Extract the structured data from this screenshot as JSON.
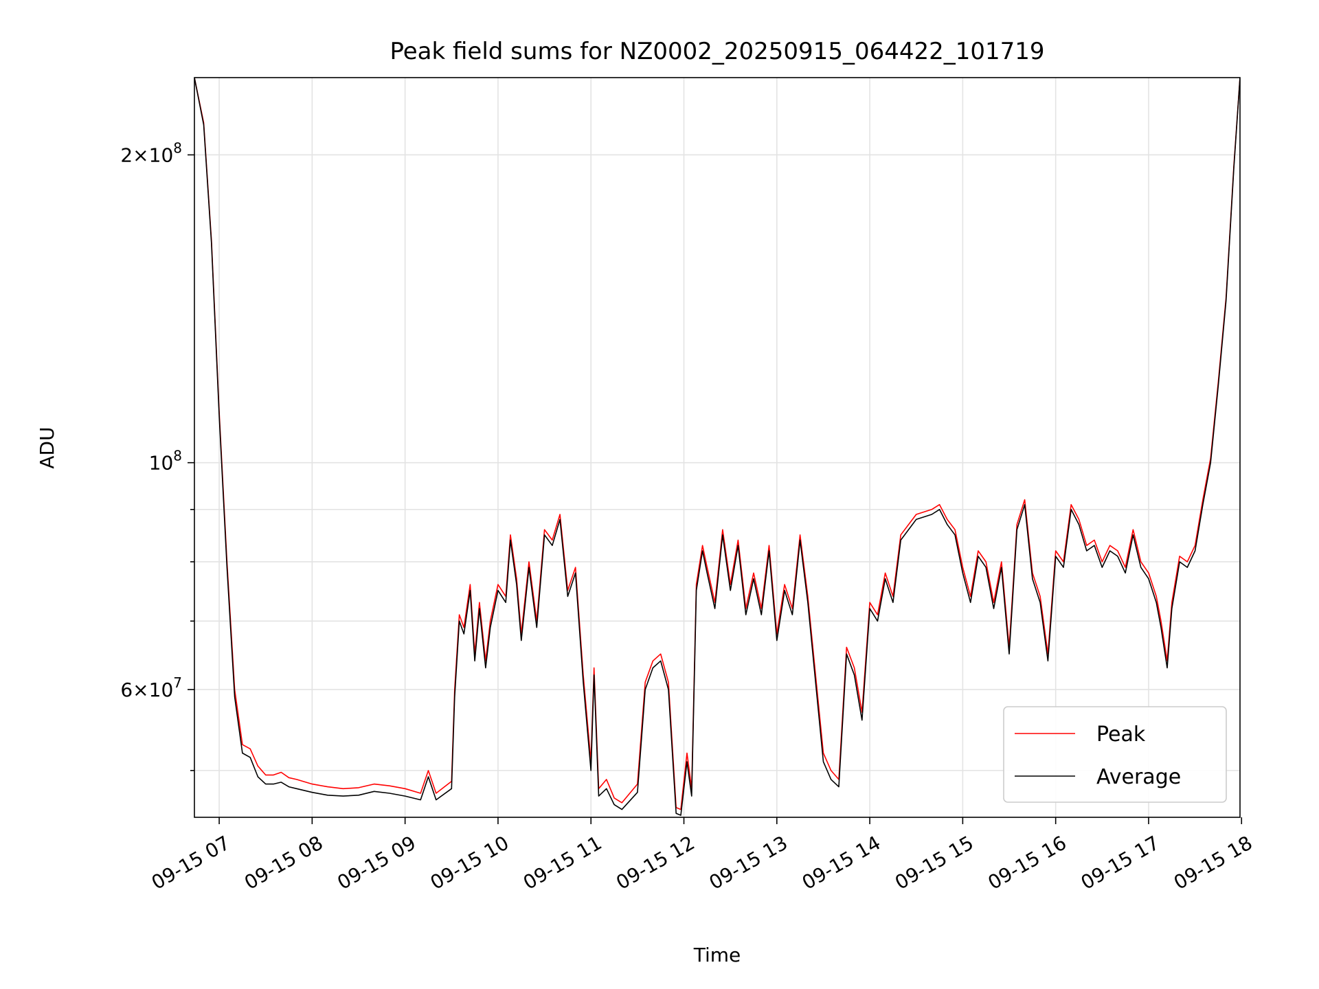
{
  "chart_data": {
    "type": "line",
    "title": "Peak field sums for NZ0002_20250915_064422_101719",
    "xlabel": "Time",
    "ylabel": "ADU",
    "yscale": "log",
    "grid": true,
    "legend_position": "lower-right",
    "xlim": [
      "2025-09-15 06:44",
      "2025-09-15 17:59"
    ],
    "ylim": [
      45000000,
      238000000
    ],
    "x_ticks": [
      {
        "x": "2025-09-15 07:00",
        "label": "09-15 07"
      },
      {
        "x": "2025-09-15 08:00",
        "label": "09-15 08"
      },
      {
        "x": "2025-09-15 09:00",
        "label": "09-15 09"
      },
      {
        "x": "2025-09-15 10:00",
        "label": "09-15 10"
      },
      {
        "x": "2025-09-15 11:00",
        "label": "09-15 11"
      },
      {
        "x": "2025-09-15 12:00",
        "label": "09-15 12"
      },
      {
        "x": "2025-09-15 13:00",
        "label": "09-15 13"
      },
      {
        "x": "2025-09-15 14:00",
        "label": "09-15 14"
      },
      {
        "x": "2025-09-15 15:00",
        "label": "09-15 15"
      },
      {
        "x": "2025-09-15 16:00",
        "label": "09-15 16"
      },
      {
        "x": "2025-09-15 17:00",
        "label": "09-15 17"
      },
      {
        "x": "2025-09-15 18:00",
        "label": "09-15 18"
      }
    ],
    "y_major_ticks": [
      {
        "value": 200000000,
        "mantissa": "2",
        "exponent": "8"
      },
      {
        "value": 100000000,
        "mantissa": "",
        "exponent": "8"
      },
      {
        "value": 60000000,
        "mantissa": "6",
        "exponent": "7"
      }
    ],
    "y_minor_grid": [
      50000000,
      70000000,
      80000000,
      90000000
    ],
    "series": [
      {
        "name": "Peak",
        "color": "#ff0000",
        "x": [
          "2025-09-15 06:44",
          "2025-09-15 06:50",
          "2025-09-15 06:55",
          "2025-09-15 07:00",
          "2025-09-15 07:05",
          "2025-09-15 07:10",
          "2025-09-15 07:15",
          "2025-09-15 07:20",
          "2025-09-15 07:25",
          "2025-09-15 07:30",
          "2025-09-15 07:35",
          "2025-09-15 07:40",
          "2025-09-15 07:45",
          "2025-09-15 07:50",
          "2025-09-15 08:00",
          "2025-09-15 08:10",
          "2025-09-15 08:20",
          "2025-09-15 08:30",
          "2025-09-15 08:40",
          "2025-09-15 08:50",
          "2025-09-15 09:00",
          "2025-09-15 09:10",
          "2025-09-15 09:15",
          "2025-09-15 09:20",
          "2025-09-15 09:30",
          "2025-09-15 09:32",
          "2025-09-15 09:35",
          "2025-09-15 09:38",
          "2025-09-15 09:42",
          "2025-09-15 09:45",
          "2025-09-15 09:48",
          "2025-09-15 09:52",
          "2025-09-15 09:55",
          "2025-09-15 10:00",
          "2025-09-15 10:05",
          "2025-09-15 10:08",
          "2025-09-15 10:12",
          "2025-09-15 10:15",
          "2025-09-15 10:20",
          "2025-09-15 10:25",
          "2025-09-15 10:30",
          "2025-09-15 10:35",
          "2025-09-15 10:40",
          "2025-09-15 10:45",
          "2025-09-15 10:50",
          "2025-09-15 10:55",
          "2025-09-15 11:00",
          "2025-09-15 11:02",
          "2025-09-15 11:05",
          "2025-09-15 11:10",
          "2025-09-15 11:15",
          "2025-09-15 11:20",
          "2025-09-15 11:30",
          "2025-09-15 11:35",
          "2025-09-15 11:40",
          "2025-09-15 11:45",
          "2025-09-15 11:50",
          "2025-09-15 11:55",
          "2025-09-15 11:58",
          "2025-09-15 12:02",
          "2025-09-15 12:05",
          "2025-09-15 12:08",
          "2025-09-15 12:12",
          "2025-09-15 12:15",
          "2025-09-15 12:20",
          "2025-09-15 12:25",
          "2025-09-15 12:30",
          "2025-09-15 12:35",
          "2025-09-15 12:40",
          "2025-09-15 12:45",
          "2025-09-15 12:50",
          "2025-09-15 12:55",
          "2025-09-15 13:00",
          "2025-09-15 13:05",
          "2025-09-15 13:10",
          "2025-09-15 13:15",
          "2025-09-15 13:20",
          "2025-09-15 13:25",
          "2025-09-15 13:30",
          "2025-09-15 13:35",
          "2025-09-15 13:40",
          "2025-09-15 13:45",
          "2025-09-15 13:50",
          "2025-09-15 13:55",
          "2025-09-15 14:00",
          "2025-09-15 14:05",
          "2025-09-15 14:10",
          "2025-09-15 14:15",
          "2025-09-15 14:20",
          "2025-09-15 14:30",
          "2025-09-15 14:40",
          "2025-09-15 14:45",
          "2025-09-15 14:50",
          "2025-09-15 14:55",
          "2025-09-15 15:00",
          "2025-09-15 15:05",
          "2025-09-15 15:10",
          "2025-09-15 15:15",
          "2025-09-15 15:20",
          "2025-09-15 15:25",
          "2025-09-15 15:30",
          "2025-09-15 15:35",
          "2025-09-15 15:40",
          "2025-09-15 15:45",
          "2025-09-15 15:50",
          "2025-09-15 15:55",
          "2025-09-15 16:00",
          "2025-09-15 16:05",
          "2025-09-15 16:10",
          "2025-09-15 16:15",
          "2025-09-15 16:20",
          "2025-09-15 16:25",
          "2025-09-15 16:30",
          "2025-09-15 16:35",
          "2025-09-15 16:40",
          "2025-09-15 16:45",
          "2025-09-15 16:50",
          "2025-09-15 16:55",
          "2025-09-15 17:00",
          "2025-09-15 17:05",
          "2025-09-15 17:08",
          "2025-09-15 17:12",
          "2025-09-15 17:15",
          "2025-09-15 17:20",
          "2025-09-15 17:25",
          "2025-09-15 17:30",
          "2025-09-15 17:35",
          "2025-09-15 17:40",
          "2025-09-15 17:45",
          "2025-09-15 17:50",
          "2025-09-15 17:55",
          "2025-09-15 17:59"
        ],
        "y": [
          238000000,
          215000000,
          165000000,
          112000000,
          80000000,
          60000000,
          53000000,
          52500000,
          50500000,
          49500000,
          49500000,
          49800000,
          49200000,
          49000000,
          48500000,
          48200000,
          48000000,
          48100000,
          48500000,
          48300000,
          48000000,
          47500000,
          50000000,
          47500000,
          48800000,
          60000000,
          71000000,
          69000000,
          76000000,
          65000000,
          73000000,
          64000000,
          70000000,
          76000000,
          74000000,
          85000000,
          77000000,
          68000000,
          80000000,
          70000000,
          86000000,
          84000000,
          89000000,
          75000000,
          79000000,
          62000000,
          51000000,
          63000000,
          48000000,
          49000000,
          47000000,
          46500000,
          48500000,
          61000000,
          64000000,
          65000000,
          61000000,
          46000000,
          45800000,
          52000000,
          48000000,
          76000000,
          83000000,
          79000000,
          73000000,
          86000000,
          76000000,
          84000000,
          72000000,
          78000000,
          72000000,
          83000000,
          68000000,
          76000000,
          72000000,
          85000000,
          74000000,
          62000000,
          52000000,
          50000000,
          49000000,
          66000000,
          63000000,
          57000000,
          73000000,
          71000000,
          78000000,
          74000000,
          85000000,
          89000000,
          90000000,
          91000000,
          88000000,
          86000000,
          79000000,
          74000000,
          82000000,
          80000000,
          73000000,
          80000000,
          66000000,
          87000000,
          92000000,
          78000000,
          74000000,
          65000000,
          82000000,
          80000000,
          91000000,
          88000000,
          83000000,
          84000000,
          80000000,
          83000000,
          82000000,
          79000000,
          86000000,
          80000000,
          78000000,
          74000000,
          70000000,
          64000000,
          73000000,
          81000000,
          80000000,
          83000000,
          92000000,
          101000000,
          120000000,
          145000000,
          195000000,
          238000000
        ]
      },
      {
        "name": "Average",
        "color": "#000000",
        "x": [
          "2025-09-15 06:44",
          "2025-09-15 06:50",
          "2025-09-15 06:55",
          "2025-09-15 07:00",
          "2025-09-15 07:05",
          "2025-09-15 07:10",
          "2025-09-15 07:15",
          "2025-09-15 07:20",
          "2025-09-15 07:25",
          "2025-09-15 07:30",
          "2025-09-15 07:35",
          "2025-09-15 07:40",
          "2025-09-15 07:45",
          "2025-09-15 07:50",
          "2025-09-15 08:00",
          "2025-09-15 08:10",
          "2025-09-15 08:20",
          "2025-09-15 08:30",
          "2025-09-15 08:40",
          "2025-09-15 08:50",
          "2025-09-15 09:00",
          "2025-09-15 09:10",
          "2025-09-15 09:15",
          "2025-09-15 09:20",
          "2025-09-15 09:30",
          "2025-09-15 09:32",
          "2025-09-15 09:35",
          "2025-09-15 09:38",
          "2025-09-15 09:42",
          "2025-09-15 09:45",
          "2025-09-15 09:48",
          "2025-09-15 09:52",
          "2025-09-15 09:55",
          "2025-09-15 10:00",
          "2025-09-15 10:05",
          "2025-09-15 10:08",
          "2025-09-15 10:12",
          "2025-09-15 10:15",
          "2025-09-15 10:20",
          "2025-09-15 10:25",
          "2025-09-15 10:30",
          "2025-09-15 10:35",
          "2025-09-15 10:40",
          "2025-09-15 10:45",
          "2025-09-15 10:50",
          "2025-09-15 10:55",
          "2025-09-15 11:00",
          "2025-09-15 11:02",
          "2025-09-15 11:05",
          "2025-09-15 11:10",
          "2025-09-15 11:15",
          "2025-09-15 11:20",
          "2025-09-15 11:30",
          "2025-09-15 11:35",
          "2025-09-15 11:40",
          "2025-09-15 11:45",
          "2025-09-15 11:50",
          "2025-09-15 11:55",
          "2025-09-15 11:58",
          "2025-09-15 12:02",
          "2025-09-15 12:05",
          "2025-09-15 12:08",
          "2025-09-15 12:12",
          "2025-09-15 12:15",
          "2025-09-15 12:20",
          "2025-09-15 12:25",
          "2025-09-15 12:30",
          "2025-09-15 12:35",
          "2025-09-15 12:40",
          "2025-09-15 12:45",
          "2025-09-15 12:50",
          "2025-09-15 12:55",
          "2025-09-15 13:00",
          "2025-09-15 13:05",
          "2025-09-15 13:10",
          "2025-09-15 13:15",
          "2025-09-15 13:20",
          "2025-09-15 13:25",
          "2025-09-15 13:30",
          "2025-09-15 13:35",
          "2025-09-15 13:40",
          "2025-09-15 13:45",
          "2025-09-15 13:50",
          "2025-09-15 13:55",
          "2025-09-15 14:00",
          "2025-09-15 14:05",
          "2025-09-15 14:10",
          "2025-09-15 14:15",
          "2025-09-15 14:20",
          "2025-09-15 14:30",
          "2025-09-15 14:40",
          "2025-09-15 14:45",
          "2025-09-15 14:50",
          "2025-09-15 14:55",
          "2025-09-15 15:00",
          "2025-09-15 15:05",
          "2025-09-15 15:10",
          "2025-09-15 15:15",
          "2025-09-15 15:20",
          "2025-09-15 15:25",
          "2025-09-15 15:30",
          "2025-09-15 15:35",
          "2025-09-15 15:40",
          "2025-09-15 15:45",
          "2025-09-15 15:50",
          "2025-09-15 15:55",
          "2025-09-15 16:00",
          "2025-09-15 16:05",
          "2025-09-15 16:10",
          "2025-09-15 16:15",
          "2025-09-15 16:20",
          "2025-09-15 16:25",
          "2025-09-15 16:30",
          "2025-09-15 16:35",
          "2025-09-15 16:40",
          "2025-09-15 16:45",
          "2025-09-15 16:50",
          "2025-09-15 16:55",
          "2025-09-15 17:00",
          "2025-09-15 17:05",
          "2025-09-15 17:08",
          "2025-09-15 17:12",
          "2025-09-15 17:15",
          "2025-09-15 17:20",
          "2025-09-15 17:25",
          "2025-09-15 17:30",
          "2025-09-15 17:35",
          "2025-09-15 17:40",
          "2025-09-15 17:45",
          "2025-09-15 17:50",
          "2025-09-15 17:55",
          "2025-09-15 17:59"
        ],
        "y": [
          238000000,
          214000000,
          164000000,
          111000000,
          79000000,
          59000000,
          52000000,
          51500000,
          49300000,
          48500000,
          48500000,
          48700000,
          48200000,
          48000000,
          47600000,
          47300000,
          47200000,
          47300000,
          47700000,
          47500000,
          47200000,
          46800000,
          49300000,
          46800000,
          48000000,
          59000000,
          70000000,
          68000000,
          75000000,
          64000000,
          72000000,
          63000000,
          69000000,
          75000000,
          73000000,
          84000000,
          76000000,
          67000000,
          79000000,
          69000000,
          85000000,
          83000000,
          88000000,
          74000000,
          78000000,
          61000000,
          50000000,
          62000000,
          47200000,
          48000000,
          46300000,
          45800000,
          47600000,
          60000000,
          63000000,
          64000000,
          60000000,
          45400000,
          45200000,
          51000000,
          47200000,
          75000000,
          82000000,
          78000000,
          72000000,
          85000000,
          75000000,
          83000000,
          71000000,
          77000000,
          71000000,
          82000000,
          67000000,
          75000000,
          71000000,
          84000000,
          73000000,
          61000000,
          51000000,
          49000000,
          48200000,
          65000000,
          62000000,
          56000000,
          72000000,
          70000000,
          77000000,
          73000000,
          84000000,
          88000000,
          89000000,
          90000000,
          87000000,
          85000000,
          78000000,
          73000000,
          81000000,
          79000000,
          72000000,
          79000000,
          65000000,
          86000000,
          91000000,
          77000000,
          73000000,
          64000000,
          81000000,
          79000000,
          90000000,
          87000000,
          82000000,
          83000000,
          79000000,
          82000000,
          81000000,
          78000000,
          85000000,
          79000000,
          77000000,
          73000000,
          69000000,
          63000000,
          72000000,
          80000000,
          79000000,
          82000000,
          91000000,
          100000000,
          119000000,
          144000000,
          194000000,
          238000000
        ]
      }
    ]
  }
}
